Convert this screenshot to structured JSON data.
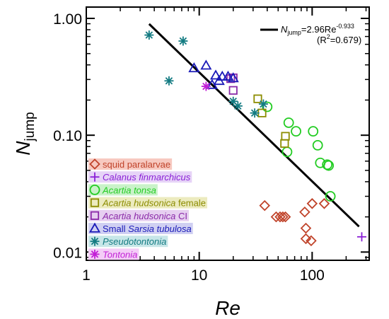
{
  "chart_data": {
    "type": "scatter",
    "xlabel": "Re",
    "ylabel": "N",
    "ylabel_sub": "jump",
    "xscale": "log",
    "yscale": "log",
    "xlim": [
      1,
      320
    ],
    "ylim": [
      0.0085,
      1.25
    ],
    "x_ticks": [
      {
        "value": 1,
        "label": "1"
      },
      {
        "value": 10,
        "label": "10"
      },
      {
        "value": 100,
        "label": "100"
      }
    ],
    "y_ticks": [
      {
        "value": 0.01,
        "label": "0.01"
      },
      {
        "value": 0.1,
        "label": "0.10"
      },
      {
        "value": 1.0,
        "label": "1.00"
      }
    ],
    "legend_position": "lower-left",
    "fit": {
      "coefficient": 2.96,
      "exponent": -0.933,
      "x_range": [
        3.6,
        260
      ],
      "label_prefix": "N",
      "label_sub": "jump",
      "label_mid": "=2.96Re",
      "label_sup": "-0.933",
      "r2_open": "(R",
      "r2_sup": "2",
      "r2_close": "=0.679)"
    },
    "series": [
      {
        "name_parts": [
          "squid paralarvae"
        ],
        "italic_parts": [
          false
        ],
        "color": "#c0432a",
        "highlight": "#f7c9c0",
        "marker": "diamond",
        "points": [
          [
            38,
            0.025
          ],
          [
            48,
            0.02
          ],
          [
            52,
            0.02
          ],
          [
            55,
            0.02
          ],
          [
            58,
            0.02
          ],
          [
            86,
            0.022
          ],
          [
            100,
            0.026
          ],
          [
            88,
            0.016
          ],
          [
            88,
            0.013
          ],
          [
            98,
            0.0125
          ],
          [
            128,
            0.026
          ]
        ]
      },
      {
        "name_parts": [
          "Calanus finmarchicus"
        ],
        "italic_parts": [
          true
        ],
        "color": "#8a1fd6",
        "highlight": "#e6d3f7",
        "marker": "plus",
        "points": [
          [
            275,
            0.0135
          ]
        ]
      },
      {
        "name_parts": [
          "Acartia tonsa"
        ],
        "italic_parts": [
          true
        ],
        "color": "#22cc22",
        "highlight": "#c9f2c9",
        "marker": "circle",
        "points": [
          [
            40,
            0.175
          ],
          [
            62,
            0.128
          ],
          [
            72,
            0.108
          ],
          [
            60,
            0.072
          ],
          [
            102,
            0.108
          ],
          [
            112,
            0.082
          ],
          [
            118,
            0.058
          ],
          [
            136,
            0.056
          ],
          [
            140,
            0.055
          ],
          [
            145,
            0.03
          ]
        ]
      },
      {
        "name_parts": [
          "Acartia hudsonica",
          " female"
        ],
        "italic_parts": [
          true,
          false
        ],
        "color": "#8c8c00",
        "highlight": "#ecebbf",
        "marker": "square",
        "points": [
          [
            33,
            0.205
          ],
          [
            36,
            0.155
          ],
          [
            58,
            0.098
          ],
          [
            57,
            0.085
          ]
        ]
      },
      {
        "name_parts": [
          "Acartia hudsonica",
          " CI"
        ],
        "italic_parts": [
          true,
          false
        ],
        "color": "#8a2aa8",
        "highlight": "#e6cff0",
        "marker": "square",
        "points": [
          [
            19,
            0.305
          ],
          [
            20,
            0.31
          ],
          [
            20,
            0.242
          ]
        ]
      },
      {
        "name_parts": [
          "Small ",
          "Sarsia tubulosa"
        ],
        "italic_parts": [
          false,
          true
        ],
        "color": "#1a1ab8",
        "highlight": "#d0d0f2",
        "marker": "triangle",
        "points": [
          [
            9,
            0.375
          ],
          [
            11.5,
            0.395
          ],
          [
            13,
            0.27
          ],
          [
            14,
            0.325
          ],
          [
            15,
            0.292
          ],
          [
            16,
            0.318
          ],
          [
            18,
            0.318
          ],
          [
            20,
            0.308
          ]
        ]
      },
      {
        "name_parts": [
          "Pseudotontonia"
        ],
        "italic_parts": [
          true
        ],
        "color": "#137b82",
        "highlight": "#c7e6e8",
        "marker": "star",
        "points": [
          [
            3.6,
            0.72
          ],
          [
            7.2,
            0.64
          ],
          [
            5.4,
            0.292
          ],
          [
            20,
            0.195
          ],
          [
            22,
            0.178
          ],
          [
            31,
            0.155
          ],
          [
            37,
            0.185
          ]
        ]
      },
      {
        "name_parts": [
          "Tontonia"
        ],
        "italic_parts": [
          true
        ],
        "color": "#c21fd6",
        "highlight": "#f4cdf7",
        "marker": "star",
        "points": [
          [
            11.5,
            0.262
          ]
        ]
      }
    ]
  }
}
